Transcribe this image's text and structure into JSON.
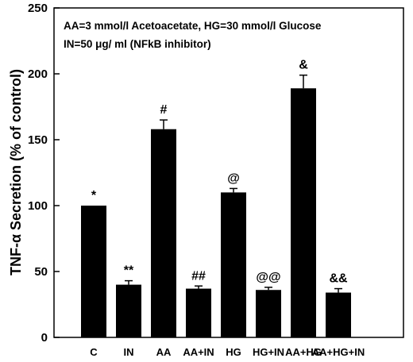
{
  "chart_data": {
    "type": "bar",
    "ylabel": "TNF-α Secretion (% of control)",
    "xlabel": "",
    "title": "",
    "ylim": [
      0,
      250
    ],
    "yticks": [
      0,
      50,
      100,
      150,
      200,
      250
    ],
    "categories": [
      "C",
      "IN",
      "AA",
      "AA+IN",
      "HG",
      "HG+IN",
      "AA+HG",
      "AA+HG+IN"
    ],
    "values": [
      100,
      40,
      158,
      37,
      110,
      36,
      189,
      34
    ],
    "errors": [
      0,
      3,
      7,
      2,
      3,
      2,
      10,
      3
    ],
    "annotations": [
      "*",
      "**",
      "#",
      "##",
      "@",
      "@@",
      "&",
      "&&"
    ],
    "legend_lines": [
      "AA=3 mmol/l Acetoacetate, HG=30 mmol/l Glucose",
      "IN=50 μg/ ml (NFkB inhibitor)"
    ],
    "legend_position": "top",
    "grid": false,
    "colors": {
      "bar": "#000000",
      "axis": "#000000",
      "background": "#ffffff"
    }
  }
}
